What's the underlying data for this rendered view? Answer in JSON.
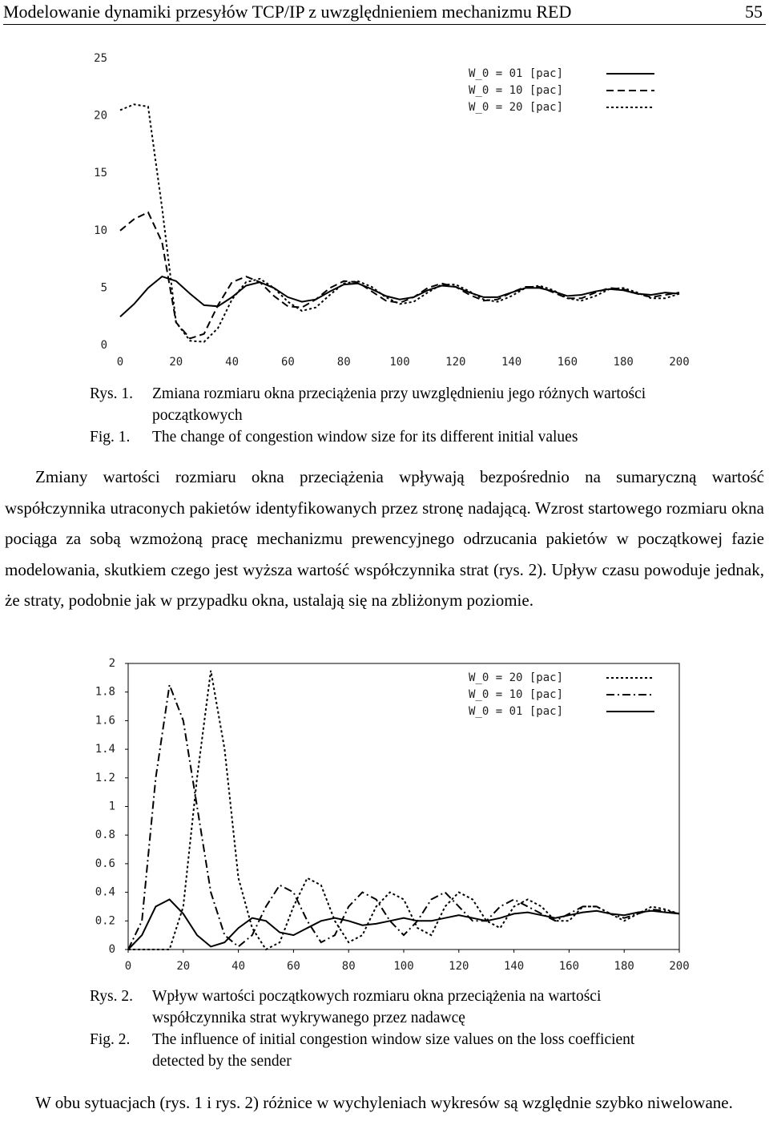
{
  "header": {
    "title": "Modelowanie dynamiki przesyłów TCP/IP z uwzględnieniem mechanizmu RED",
    "page": "55"
  },
  "chart_data": [
    {
      "type": "line",
      "xlim": [
        0,
        200
      ],
      "ylim": [
        0,
        25
      ],
      "xticks": [
        0,
        20,
        40,
        60,
        80,
        100,
        120,
        140,
        160,
        180,
        200
      ],
      "yticks": [
        0,
        5,
        10,
        15,
        20,
        25
      ],
      "frame": false,
      "x": [
        0,
        5,
        10,
        15,
        20,
        25,
        30,
        35,
        40,
        45,
        50,
        55,
        60,
        65,
        70,
        75,
        80,
        85,
        90,
        95,
        100,
        105,
        110,
        115,
        120,
        125,
        130,
        135,
        140,
        145,
        150,
        155,
        160,
        165,
        170,
        175,
        180,
        185,
        190,
        195,
        200
      ],
      "series": [
        {
          "name": "W_0 = 01 [pac]",
          "color": "#000000",
          "dash": "solid",
          "values": [
            2.5,
            3.6,
            5.0,
            6.0,
            5.6,
            4.5,
            3.5,
            3.4,
            4.2,
            5.2,
            5.5,
            5.0,
            4.2,
            3.8,
            4.0,
            4.7,
            5.3,
            5.4,
            4.9,
            4.3,
            4.0,
            4.2,
            4.8,
            5.2,
            5.1,
            4.6,
            4.2,
            4.2,
            4.6,
            5.0,
            5.0,
            4.7,
            4.3,
            4.4,
            4.7,
            4.9,
            4.8,
            4.5,
            4.4,
            4.6,
            4.5
          ]
        },
        {
          "name": "W_0 = 10 [pac]",
          "color": "#000000",
          "dash": "dashed",
          "values": [
            10.0,
            11.0,
            11.6,
            9.0,
            2.0,
            0.6,
            1.0,
            3.5,
            5.5,
            6.0,
            5.5,
            4.3,
            3.4,
            3.3,
            4.0,
            5.0,
            5.6,
            5.5,
            4.7,
            3.9,
            3.7,
            4.2,
            5.0,
            5.4,
            5.1,
            4.4,
            3.9,
            4.0,
            4.6,
            5.1,
            5.1,
            4.6,
            4.1,
            4.1,
            4.6,
            5.0,
            4.9,
            4.5,
            4.2,
            4.4,
            4.6
          ]
        },
        {
          "name": "W_0 = 20 [pac]",
          "color": "#000000",
          "dash": "dotted",
          "values": [
            20.5,
            21.0,
            20.8,
            12.0,
            2.0,
            0.4,
            0.3,
            1.5,
            4.0,
            5.5,
            5.8,
            5.0,
            3.8,
            3.0,
            3.3,
            4.4,
            5.4,
            5.6,
            5.1,
            4.2,
            3.6,
            3.8,
            4.6,
            5.3,
            5.3,
            4.7,
            4.0,
            3.8,
            4.3,
            5.0,
            5.2,
            4.8,
            4.1,
            3.9,
            4.3,
            4.9,
            5.0,
            4.6,
            4.1,
            4.1,
            4.5
          ]
        }
      ]
    },
    {
      "type": "line",
      "xlim": [
        0,
        200
      ],
      "ylim": [
        0,
        2
      ],
      "xticks": [
        0,
        20,
        40,
        60,
        80,
        100,
        120,
        140,
        160,
        180,
        200
      ],
      "yticks": [
        0,
        0.2,
        0.4,
        0.6,
        0.8,
        1,
        1.2,
        1.4,
        1.6,
        1.8,
        2
      ],
      "frame": true,
      "x": [
        0,
        5,
        10,
        15,
        20,
        25,
        30,
        35,
        40,
        45,
        50,
        55,
        60,
        65,
        70,
        75,
        80,
        85,
        90,
        95,
        100,
        105,
        110,
        115,
        120,
        125,
        130,
        135,
        140,
        145,
        150,
        155,
        160,
        165,
        170,
        175,
        180,
        185,
        190,
        195,
        200
      ],
      "series": [
        {
          "name": "W_0 = 20 [pac]",
          "color": "#000000",
          "dash": "dotted",
          "values": [
            0,
            0,
            0,
            0,
            0.3,
            1.2,
            1.95,
            1.4,
            0.5,
            0.15,
            0,
            0.05,
            0.3,
            0.5,
            0.45,
            0.2,
            0.05,
            0.1,
            0.3,
            0.4,
            0.35,
            0.15,
            0.1,
            0.3,
            0.4,
            0.35,
            0.2,
            0.15,
            0.3,
            0.35,
            0.3,
            0.2,
            0.2,
            0.3,
            0.3,
            0.25,
            0.2,
            0.25,
            0.3,
            0.28,
            0.25
          ]
        },
        {
          "name": "W_0 = 10 [pac]",
          "color": "#000000",
          "dash": "dashdot",
          "values": [
            0,
            0.2,
            1.2,
            1.85,
            1.6,
            1.0,
            0.4,
            0.1,
            0.02,
            0.1,
            0.3,
            0.45,
            0.4,
            0.2,
            0.05,
            0.1,
            0.3,
            0.4,
            0.35,
            0.2,
            0.1,
            0.2,
            0.35,
            0.4,
            0.3,
            0.2,
            0.2,
            0.3,
            0.35,
            0.3,
            0.25,
            0.2,
            0.25,
            0.3,
            0.3,
            0.25,
            0.22,
            0.25,
            0.28,
            0.27,
            0.25
          ]
        },
        {
          "name": "W_0 = 01 [pac]",
          "color": "#000000",
          "dash": "solid",
          "values": [
            0,
            0.1,
            0.3,
            0.35,
            0.25,
            0.1,
            0.02,
            0.05,
            0.15,
            0.22,
            0.2,
            0.12,
            0.1,
            0.15,
            0.2,
            0.22,
            0.2,
            0.17,
            0.18,
            0.2,
            0.22,
            0.2,
            0.2,
            0.22,
            0.24,
            0.22,
            0.2,
            0.22,
            0.25,
            0.26,
            0.24,
            0.22,
            0.24,
            0.26,
            0.27,
            0.25,
            0.24,
            0.26,
            0.27,
            0.26,
            0.25
          ]
        }
      ]
    }
  ],
  "captions": [
    {
      "pl_label": "Rys. 1.",
      "pl_text": "Zmiana rozmiaru okna przeciążenia przy uwzględnieniu jego różnych wartości początkowych",
      "en_label": "Fig. 1.",
      "en_text": "The change of congestion window size for its different initial values"
    },
    {
      "pl_label": "Rys. 2.",
      "pl_text": "Wpływ wartości początkowych rozmiaru okna przeciążenia na wartości współczynnika strat wykrywanego przez nadawcę",
      "en_label": "Fig. 2.",
      "en_text": "The influence of initial congestion window size values on the loss coefficient detected by the sender"
    }
  ],
  "paragraphs": [
    "Zmiany wartości rozmiaru okna przeciążenia wpływają bezpośrednio na sumaryczną wartość współczynnika utraconych pakietów identyfikowanych przez stronę nadającą. Wzrost startowego rozmiaru okna pociąga za sobą wzmożoną pracę mechanizmu prewencyjnego odrzucania pakietów w początkowej fazie modelowania, skutkiem czego jest wyższa wartość współczynnika strat (rys. 2). Upływ czasu powoduje jednak, że straty, podobnie jak w przypadku okna, ustalają się na zbliżonym poziomie.",
    "W obu sytuacjach (rys. 1 i rys. 2) różnice w wychyleniach wykresów są względnie szybko niwelowane."
  ]
}
